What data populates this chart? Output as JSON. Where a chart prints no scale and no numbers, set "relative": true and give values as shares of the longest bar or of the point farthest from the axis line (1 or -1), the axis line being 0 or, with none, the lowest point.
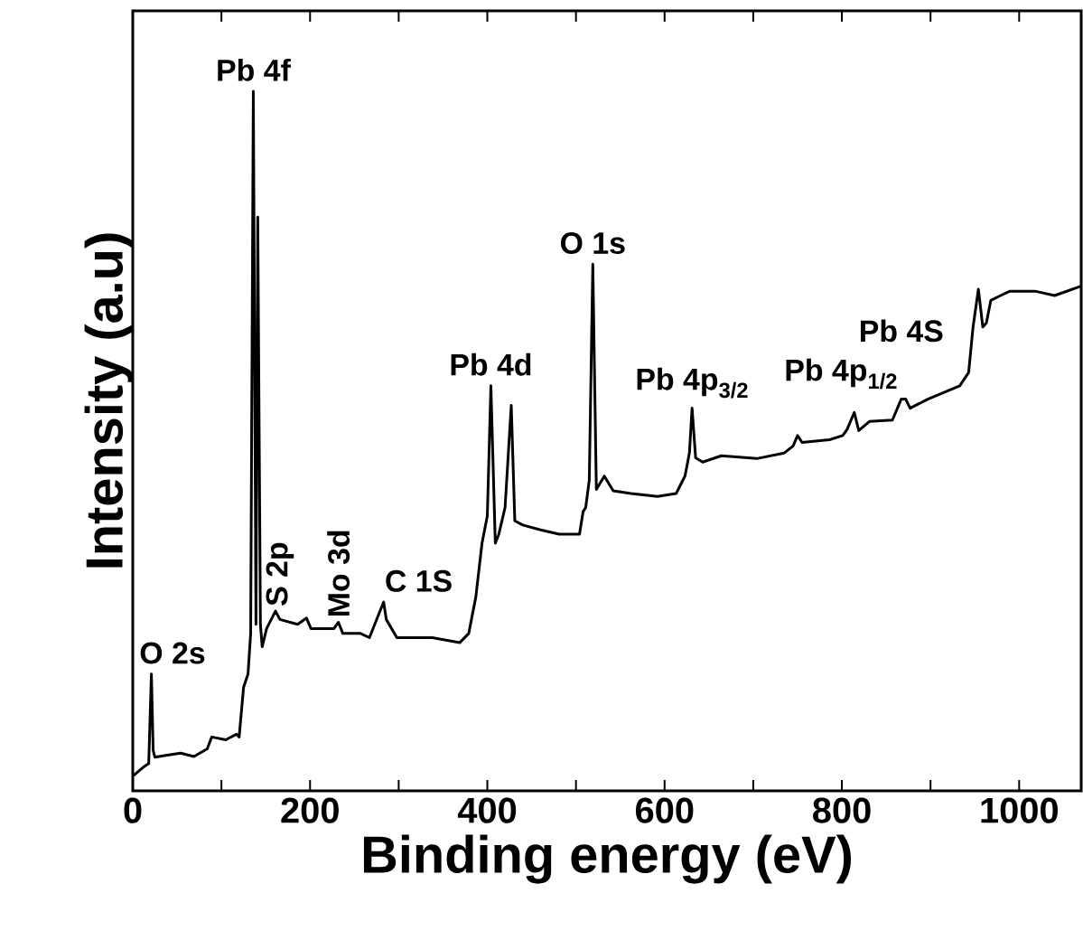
{
  "chart_data": {
    "type": "line",
    "xlabel": "Binding energy (eV)",
    "ylabel": "Intensity (a.u)",
    "relative": true,
    "tick_labels": "x",
    "marker": "none",
    "line_style": "solid",
    "color": "#000000",
    "xlim": [
      0,
      1070
    ],
    "xticks": [
      0,
      {
        "value": 100,
        "label": null
      },
      200,
      {
        "value": 300,
        "label": null
      },
      400,
      {
        "value": 500,
        "label": null
      },
      600,
      {
        "value": 700,
        "label": null
      },
      800,
      {
        "value": 900,
        "label": null
      },
      1000
    ],
    "x": [
      1,
      13,
      18,
      21,
      23,
      25,
      34,
      54,
      69,
      84,
      89,
      105,
      117,
      120,
      125,
      130,
      133,
      136,
      139,
      141,
      144,
      146,
      151,
      161,
      166,
      186,
      196,
      201,
      227,
      232,
      237,
      257,
      267,
      283,
      286,
      298,
      338,
      369,
      379,
      387,
      394,
      400,
      404,
      409,
      413,
      420,
      427,
      431,
      440,
      460,
      481,
      504,
      508,
      511,
      515,
      519,
      523,
      532,
      542,
      562,
      592,
      613,
      623,
      628,
      631,
      635,
      643,
      664,
      704,
      735,
      745,
      750,
      755,
      786,
      801,
      806,
      814,
      819,
      831,
      857,
      867,
      872,
      877,
      897,
      933,
      943,
      948,
      954,
      959,
      963,
      968,
      979,
      989,
      1019,
      1040,
      1069
    ],
    "values": [
      0.022,
      0.035,
      0.039,
      0.167,
      0.058,
      0.048,
      0.05,
      0.054,
      0.049,
      0.06,
      0.077,
      0.073,
      0.081,
      0.077,
      0.148,
      0.167,
      0.225,
      1.0,
      0.238,
      0.82,
      0.238,
      0.206,
      0.232,
      0.257,
      0.245,
      0.238,
      0.247,
      0.232,
      0.232,
      0.241,
      0.225,
      0.225,
      0.219,
      0.27,
      0.245,
      0.219,
      0.219,
      0.212,
      0.225,
      0.277,
      0.354,
      0.393,
      0.579,
      0.354,
      0.367,
      0.405,
      0.551,
      0.386,
      0.38,
      0.373,
      0.367,
      0.367,
      0.399,
      0.405,
      0.444,
      0.753,
      0.431,
      0.45,
      0.429,
      0.425,
      0.421,
      0.425,
      0.45,
      0.483,
      0.547,
      0.476,
      0.47,
      0.479,
      0.475,
      0.483,
      0.493,
      0.508,
      0.498,
      0.502,
      0.508,
      0.517,
      0.541,
      0.515,
      0.528,
      0.53,
      0.56,
      0.56,
      0.547,
      0.56,
      0.579,
      0.598,
      0.663,
      0.717,
      0.663,
      0.669,
      0.701,
      0.708,
      0.714,
      0.714,
      0.708,
      0.721
    ],
    "annotations": [
      {
        "text": "O 2s",
        "x": 21,
        "y": 0.167
      },
      {
        "text": "Pb 4f",
        "x": 136,
        "y": 1.0
      },
      {
        "text": "S 2p",
        "x": 166,
        "y": 0.257
      },
      {
        "text": "Mo 3d",
        "x": 232,
        "y": 0.241
      },
      {
        "text": "C 1S",
        "x": 283,
        "y": 0.27
      },
      {
        "text": "Pb 4d",
        "x": 404,
        "y": 0.579
      },
      {
        "text": "O 1s",
        "x": 519,
        "y": 0.753
      },
      {
        "text": "Pb 4p$_{3/2}$",
        "x": 631,
        "y": 0.547
      },
      {
        "text": "Pb 4p$_{1/2}$",
        "x": 755,
        "y": 0.508
      },
      {
        "text": "Pb 4S",
        "x": 867,
        "y": 0.56
      }
    ]
  }
}
